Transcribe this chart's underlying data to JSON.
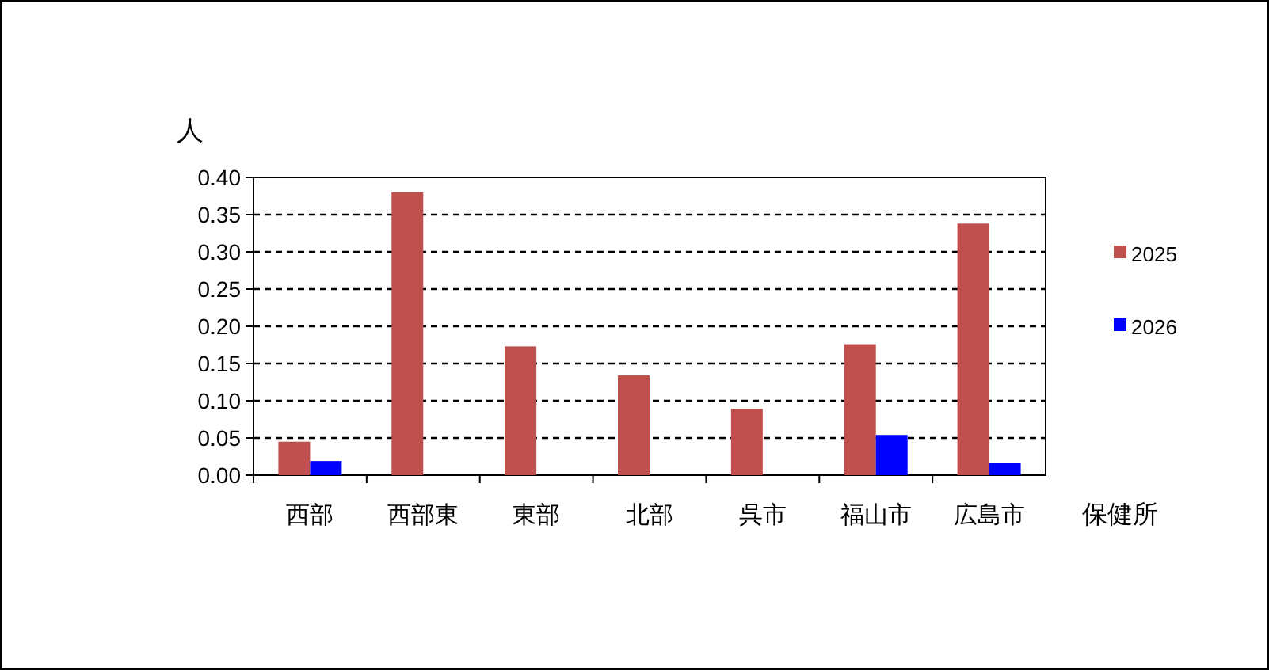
{
  "chart_data": {
    "type": "bar",
    "ylabel": "人",
    "xlabel": "保健所",
    "categories": [
      "西部",
      "西部東",
      "東部",
      "北部",
      "呉市",
      "福山市",
      "広島市"
    ],
    "series": [
      {
        "name": "2025",
        "color": "#c0504d",
        "values": [
          0.045,
          0.38,
          0.173,
          0.134,
          0.089,
          0.176,
          0.338
        ]
      },
      {
        "name": "2026",
        "color": "#0000ff",
        "values": [
          0.019,
          0,
          0,
          0,
          0,
          0.054,
          0.017
        ]
      }
    ],
    "ylim": [
      0,
      0.4
    ],
    "yticks": [
      {
        "value": 0,
        "label": "0.00"
      },
      {
        "value": 0.05,
        "label": "0.05"
      },
      {
        "value": 0.1,
        "label": "0.10"
      },
      {
        "value": 0.15,
        "label": "0.15"
      },
      {
        "value": 0.2,
        "label": "0.20"
      },
      {
        "value": 0.25,
        "label": "0.25"
      },
      {
        "value": 0.3,
        "label": "0.30"
      },
      {
        "value": 0.35,
        "label": "0.35"
      },
      {
        "value": 0.4,
        "label": "0.40"
      }
    ],
    "grid": "y",
    "legend": "right"
  }
}
